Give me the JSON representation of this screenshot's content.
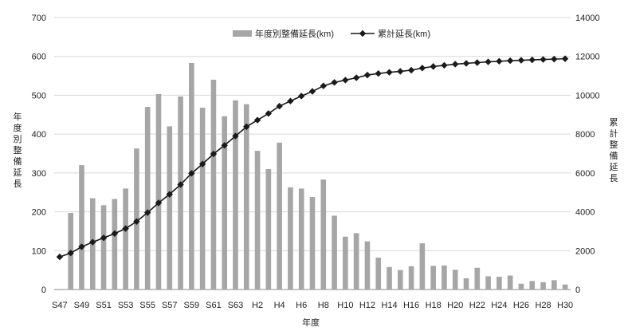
{
  "chart_data": {
    "type": "bar",
    "title": "",
    "xlabel": "年度",
    "ylabel": "年度別整備延長",
    "y2label": "累計整備延長",
    "ylim": [
      0,
      700
    ],
    "yticks": [
      0,
      100,
      200,
      300,
      400,
      500,
      600,
      700
    ],
    "y2lim": [
      0,
      14000
    ],
    "y2ticks": [
      0,
      2000,
      4000,
      6000,
      8000,
      10000,
      12000,
      14000
    ],
    "grid": true,
    "legend_position": "top-center",
    "categories": [
      "S47",
      "S48",
      "S49",
      "S50",
      "S51",
      "S52",
      "S53",
      "S54",
      "S55",
      "S56",
      "S57",
      "S58",
      "S59",
      "S60",
      "S61",
      "S62",
      "S63",
      "H1",
      "H2",
      "H3",
      "H4",
      "H5",
      "H6",
      "H7",
      "H8",
      "H9",
      "H10",
      "H11",
      "H12",
      "H13",
      "H14",
      "H15",
      "H16",
      "H17",
      "H18",
      "H19",
      "H20",
      "H21",
      "H22",
      "H23",
      "H24",
      "H25",
      "H26",
      "H27",
      "H28",
      "H29",
      "H30"
    ],
    "tick_labels": [
      "S47",
      "S49",
      "S51",
      "S53",
      "S55",
      "S57",
      "S59",
      "S61",
      "S63",
      "H2",
      "H4",
      "H6",
      "H8",
      "H10",
      "H12",
      "H14",
      "H16",
      "H18",
      "H20",
      "H22",
      "H24",
      "H26",
      "H28",
      "H30"
    ],
    "series": [
      {
        "name": "年度別整備延長(km)",
        "type": "bar",
        "axis": "left",
        "color": "#a6a6a6",
        "values": [
          0,
          197,
          320,
          235,
          217,
          233,
          260,
          363,
          470,
          503,
          420,
          497,
          583,
          468,
          540,
          446,
          487,
          477,
          357,
          310,
          378,
          263,
          260,
          238,
          283,
          190,
          136,
          145,
          124,
          82,
          58,
          50,
          60,
          119,
          61,
          62,
          51,
          29,
          56,
          34,
          33,
          36,
          15,
          22,
          19,
          24,
          13
        ]
      },
      {
        "name": "累計延長(km)",
        "type": "line",
        "axis": "right",
        "color": "#1a1a1a",
        "marker": "diamond",
        "values": [
          1680,
          1880,
          2200,
          2440,
          2660,
          2880,
          3140,
          3500,
          3960,
          4460,
          4900,
          5400,
          5980,
          6460,
          6980,
          7420,
          7900,
          8380,
          8720,
          9060,
          9440,
          9700,
          9960,
          10200,
          10480,
          10660,
          10780,
          10900,
          11040,
          11120,
          11180,
          11230,
          11290,
          11400,
          11480,
          11540,
          11600,
          11640,
          11680,
          11720,
          11750,
          11780,
          11800,
          11820,
          11840,
          11860,
          11880
        ]
      }
    ]
  }
}
